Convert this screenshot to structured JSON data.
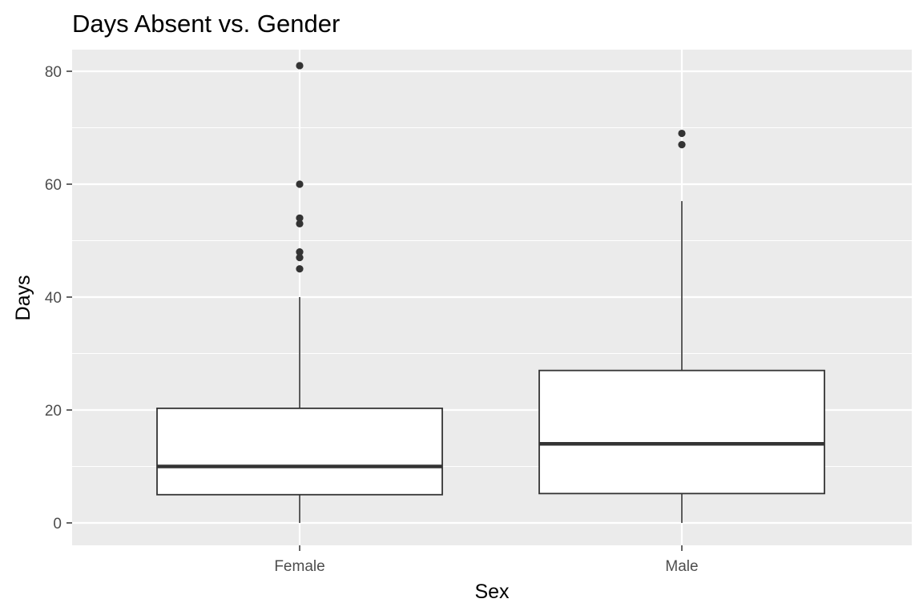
{
  "chart_data": {
    "type": "boxplot",
    "title": "Days Absent vs. Gender",
    "xlabel": "Sex",
    "ylabel": "Days",
    "ylim": [
      -4,
      85
    ],
    "yticks": [
      0,
      20,
      40,
      60,
      80
    ],
    "categories": [
      "Female",
      "Male"
    ],
    "boxes": [
      {
        "category": "Female",
        "min": 0,
        "q1": 5,
        "median": 10,
        "q3": 20.3,
        "max": 40,
        "outliers": [
          45,
          47,
          48,
          53,
          54,
          60,
          81
        ]
      },
      {
        "category": "Male",
        "min": 0,
        "q1": 5.2,
        "median": 14,
        "q3": 27,
        "max": 57,
        "outliers": [
          67,
          69
        ]
      }
    ],
    "colors": {
      "panel": "#ebebeb",
      "grid": "#ffffff",
      "box_line": "#333333",
      "box_fill": "#ffffff",
      "tick_text": "#4d4d4d"
    }
  }
}
